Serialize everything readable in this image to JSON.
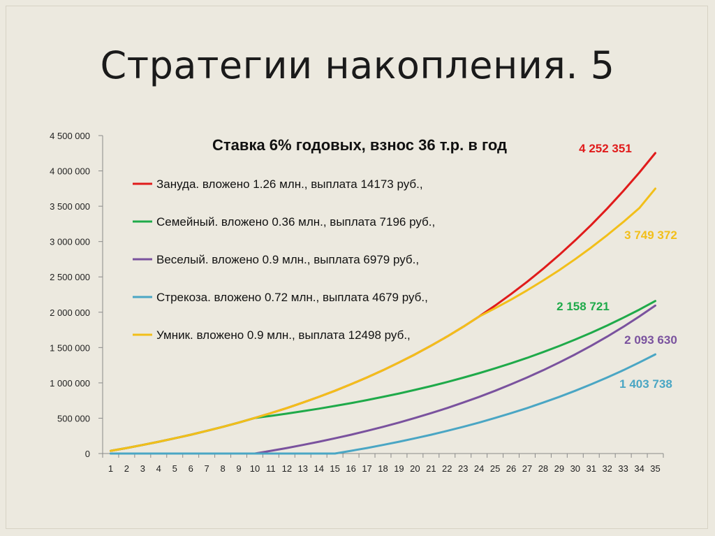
{
  "slide": {
    "title": "Стратегии накопления. 5"
  },
  "chart_data": {
    "type": "line",
    "title": "Ставка 6% годовых, взнос 36 т.р. в год",
    "xlabel": "",
    "ylabel": "",
    "x": [
      1,
      2,
      3,
      4,
      5,
      6,
      7,
      8,
      9,
      10,
      11,
      12,
      13,
      14,
      15,
      16,
      17,
      18,
      19,
      20,
      21,
      22,
      23,
      24,
      25,
      26,
      27,
      28,
      29,
      30,
      31,
      32,
      33,
      34,
      35
    ],
    "ylim": [
      0,
      4500000
    ],
    "yticks": [
      0,
      500000,
      1000000,
      1500000,
      2000000,
      2500000,
      3000000,
      3500000,
      4000000,
      4500000
    ],
    "ytick_labels": [
      "0",
      "500 000",
      "1 000 000",
      "1 500 000",
      "2 000 000",
      "2 500 000",
      "3 000 000",
      "3 500 000",
      "4 000 000",
      "4 500 000"
    ],
    "grid": false,
    "legend_position": "top-left",
    "series": [
      {
        "name": "Зануда. вложено 1.26 млн., выплата 14173 руб.,",
        "color": "#e01b1b",
        "end_label": "4 252 351",
        "values": [
          38160,
          78610,
          121490,
          166940,
          215110,
          266180,
          320300,
          377680,
          438500,
          502970,
          571310,
          643750,
          720540,
          801940,
          888220,
          979680,
          1076630,
          1179390,
          1288320,
          1403780,
          1526170,
          1655910,
          1793430,
          1939210,
          2093730,
          2257530,
          2431150,
          2615190,
          2810280,
          3017060,
          3236260,
          3468610,
          3714900,
          3975970,
          4252350
        ]
      },
      {
        "name": "Семейный. вложено 0.36 млн., выплата 7196 руб.,",
        "color": "#1faa4a",
        "end_label": "2 158 721",
        "values": [
          38160,
          78610,
          121490,
          166940,
          215110,
          266180,
          320300,
          377680,
          438500,
          502970,
          533150,
          565140,
          599050,
          634990,
          673090,
          713480,
          756290,
          801670,
          849770,
          900750,
          954800,
          1012090,
          1072810,
          1137180,
          1205410,
          1277730,
          1354400,
          1435660,
          1521800,
          1613110,
          1709890,
          1812490,
          1921240,
          2036510,
          2158720
        ]
      },
      {
        "name": "Веселый. вложено 0.9 млн., выплата 6979 руб.,",
        "color": "#7a529e",
        "end_label": "2 093 630",
        "values": [
          0,
          0,
          0,
          0,
          0,
          0,
          0,
          0,
          0,
          0,
          38160,
          78610,
          121490,
          166940,
          215110,
          266180,
          320300,
          377680,
          438500,
          502970,
          571310,
          643750,
          720540,
          801940,
          888220,
          979680,
          1076630,
          1179390,
          1288320,
          1403780,
          1526170,
          1655910,
          1793430,
          1939210,
          2093630
        ]
      },
      {
        "name": "Стрекоза. вложено 0.72 млн., выплата 4679 руб.,",
        "color": "#4aa6c4",
        "end_label": "1 403 738",
        "values": [
          0,
          0,
          0,
          0,
          0,
          0,
          0,
          0,
          0,
          0,
          0,
          0,
          0,
          0,
          0,
          38160,
          78610,
          121490,
          166940,
          215110,
          266180,
          320300,
          377680,
          438500,
          502970,
          571310,
          643750,
          720540,
          801940,
          888220,
          979680,
          1076630,
          1179390,
          1288320,
          1403740
        ]
      },
      {
        "name": "Умник. вложено 0.9 млн., выплата 12498 руб.,",
        "color": "#f2bf1a",
        "end_label": "3 749 372",
        "values": [
          38160,
          78610,
          121490,
          166940,
          215110,
          266180,
          320300,
          377680,
          438500,
          502970,
          571310,
          643750,
          720540,
          801940,
          888220,
          979680,
          1076630,
          1179390,
          1288320,
          1403780,
          1526170,
          1655910,
          1793430,
          1939210,
          2055800,
          2179200,
          2310000,
          2448600,
          2595500,
          2751200,
          2916300,
          3091300,
          3276800,
          3473400,
          3749370
        ]
      }
    ]
  }
}
